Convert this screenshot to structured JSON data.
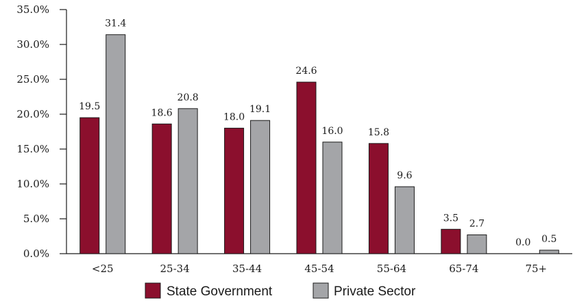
{
  "chart_data": {
    "type": "bar",
    "categories": [
      "<25",
      "25-34",
      "35-44",
      "45-54",
      "55-64",
      "65-74",
      "75+"
    ],
    "series": [
      {
        "name": "State Government",
        "color": "#8b0f2d",
        "values": [
          19.5,
          18.6,
          18.0,
          24.6,
          15.8,
          3.5,
          0.0
        ],
        "labels": [
          "19.5",
          "18.6",
          "18.0",
          "24.6",
          "15.8",
          "3.5",
          "0.0"
        ]
      },
      {
        "name": "Private Sector",
        "color": "#a4a5a8",
        "values": [
          31.4,
          20.8,
          19.1,
          16.0,
          9.6,
          2.7,
          0.5
        ],
        "labels": [
          "31.4",
          "20.8",
          "19.1",
          "16.0",
          "9.6",
          "2.7",
          "0.5"
        ]
      }
    ],
    "yticks": [
      0,
      5,
      10,
      15,
      20,
      25,
      30,
      35
    ],
    "ytick_labels": [
      "0.0%",
      "5.0%",
      "10.0%",
      "15.0%",
      "20.0%",
      "25.0%",
      "30.0%",
      "35.0%"
    ],
    "ylim": [
      0,
      35
    ],
    "grid": false,
    "legend_position": "bottom"
  }
}
